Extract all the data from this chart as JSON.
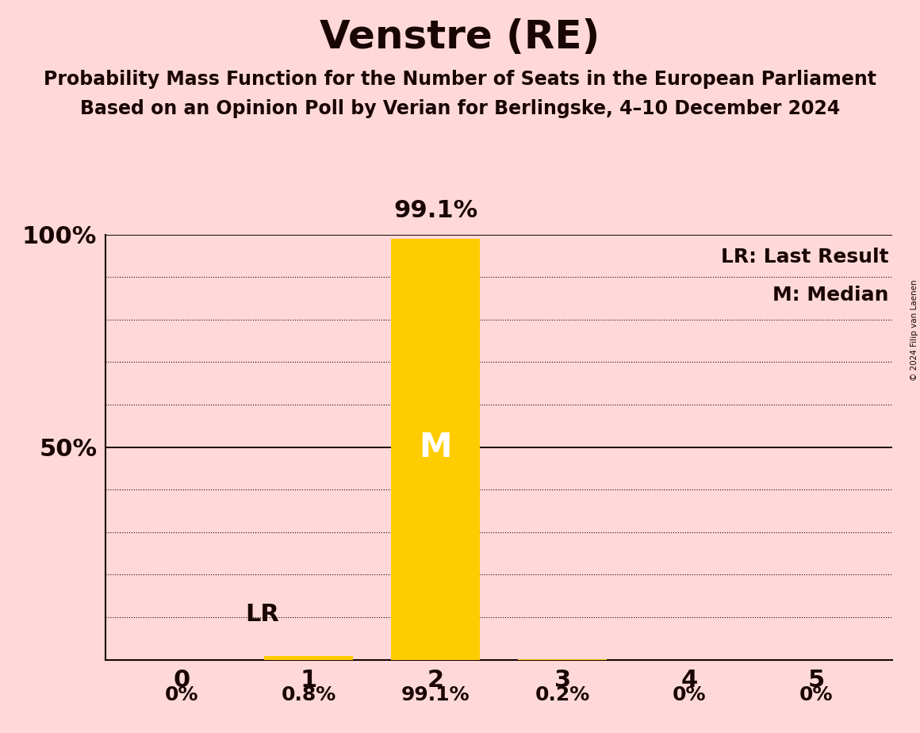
{
  "title": "Venstre (RE)",
  "subtitle1": "Probability Mass Function for the Number of Seats in the European Parliament",
  "subtitle2": "Based on an Opinion Poll by Verian for Berlingske, 4–10 December 2024",
  "copyright": "© 2024 Filip van Laenen",
  "categories": [
    0,
    1,
    2,
    3,
    4,
    5
  ],
  "values": [
    0.0,
    0.8,
    99.1,
    0.2,
    0.0,
    0.0
  ],
  "bar_color": "#FFCC00",
  "background_color": "#FFD9D9",
  "text_color": "#1a0505",
  "median": 2,
  "last_result": 1,
  "ylim": [
    0,
    100
  ],
  "yticks": [
    0,
    10,
    20,
    30,
    40,
    50,
    60,
    70,
    80,
    90,
    100
  ],
  "ylabel_solid": [
    0,
    50,
    100
  ],
  "legend_lr": "LR: Last Result",
  "legend_m": "M: Median",
  "value_labels": [
    "0%",
    "0.8%",
    "99.1%",
    "0.2%",
    "0%",
    "0%"
  ]
}
